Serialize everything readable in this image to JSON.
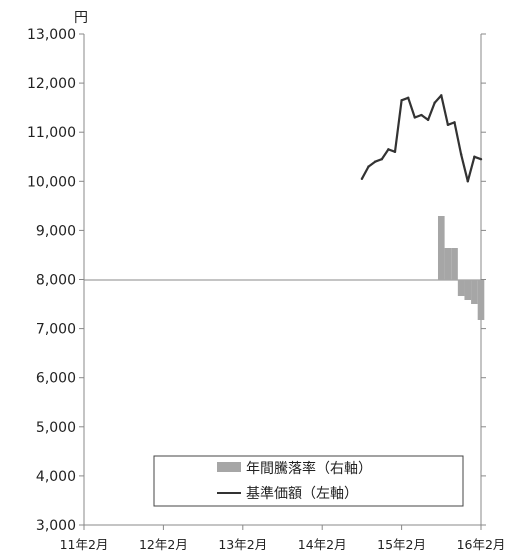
{
  "chart_data": {
    "type": "line",
    "y_unit": "円",
    "left_axis": {
      "ylim": [
        3000,
        13000
      ],
      "ticks": [
        13000,
        12000,
        11000,
        10000,
        9000,
        8000,
        7000,
        6000,
        5000,
        4000,
        3000
      ],
      "tick_labels": [
        "13,000",
        "12,000",
        "11,000",
        "10,000",
        "9,000",
        "8,000",
        "7,000",
        "6,000",
        "5,000",
        "4,000",
        "3,000"
      ]
    },
    "x_ticks": [
      "11年2月",
      "12年2月",
      "13年2月",
      "14年2月",
      "15年2月",
      "16年2月"
    ],
    "xlim": [
      0,
      60
    ],
    "grid": false,
    "legend_position": "bottom-right",
    "legend": [
      "年間騰落率（右軸）",
      "基準価額（左軸）"
    ],
    "line_series": {
      "name": "基準価額（左軸）",
      "axis": "left",
      "color": "#333333",
      "x": [
        42,
        43,
        44,
        45,
        46,
        47,
        48,
        49,
        50,
        51,
        52,
        53,
        54,
        55,
        56,
        57,
        58,
        59,
        60
      ],
      "values": [
        10050,
        10300,
        10400,
        10450,
        10650,
        10600,
        11650,
        11700,
        11300,
        11350,
        11250,
        11600,
        11750,
        11150,
        11200,
        10550,
        10000,
        10500,
        10450
      ]
    },
    "bar_series": {
      "name": "年間騰落率（右軸）",
      "axis": "right",
      "color": "#a6a6a6",
      "x": [
        54,
        55,
        56,
        57,
        58,
        59,
        60
      ],
      "values": [
        800,
        400,
        400,
        -200,
        -250,
        -300,
        -500
      ]
    }
  }
}
